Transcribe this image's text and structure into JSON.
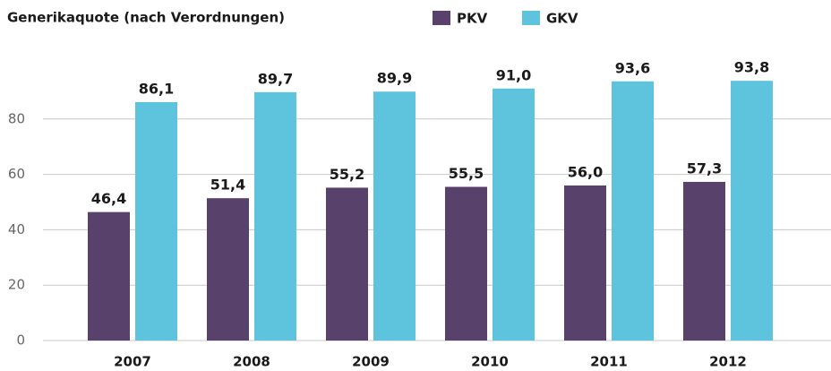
{
  "chart_data": {
    "type": "bar",
    "title": "Generikaquote (nach Verordnungen)",
    "categories": [
      "2007",
      "2008",
      "2009",
      "2010",
      "2011",
      "2012"
    ],
    "series": [
      {
        "name": "PKV",
        "color": "#58416b",
        "values": [
          46.4,
          51.4,
          55.2,
          55.5,
          56.0,
          57.3
        ],
        "value_labels": [
          "46,4",
          "51,4",
          "55,2",
          "55,5",
          "56,0",
          "57,3"
        ]
      },
      {
        "name": "GKV",
        "color": "#5ec4de",
        "values": [
          86.1,
          89.7,
          89.9,
          91.0,
          93.6,
          93.8
        ],
        "value_labels": [
          "86,1",
          "89,7",
          "89,9",
          "91,0",
          "93,6",
          "93,8"
        ]
      }
    ],
    "ylim": [
      0,
      100
    ],
    "yticks": [
      0,
      20,
      40,
      60,
      80
    ],
    "grid": true
  }
}
